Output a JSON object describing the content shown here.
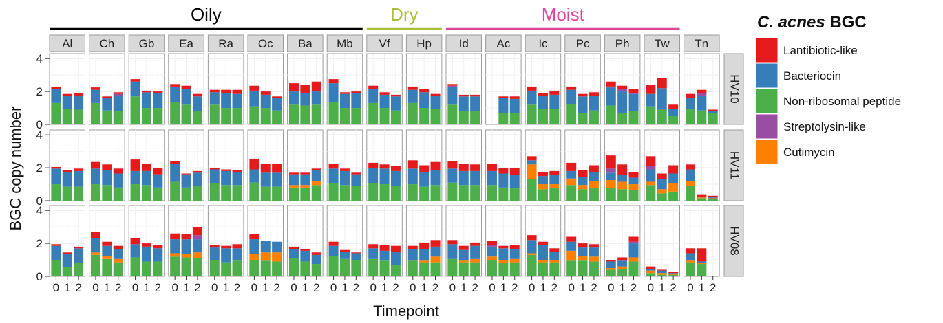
{
  "chart_data": {
    "type": "bar",
    "stacked": true,
    "faceted": true,
    "ylabel": "BGC copy number",
    "xlabel": "Timepoint",
    "ylim": [
      0,
      4.3
    ],
    "yticks": [
      0,
      2,
      4
    ],
    "timepoints": [
      "0",
      "1",
      "2"
    ],
    "grid": true,
    "groups": [
      {
        "name": "Oily",
        "sites": [
          "Al",
          "Ch",
          "Gb",
          "Ea",
          "Ra",
          "Oc",
          "Ba",
          "Mb"
        ],
        "color": "#000000"
      },
      {
        "name": "Dry",
        "sites": [
          "Vf",
          "Hp"
        ],
        "color": "#a9be38"
      },
      {
        "name": "Moist",
        "sites": [
          "Id",
          "Ac",
          "Ic",
          "Pc",
          "Ph",
          "Tw"
        ],
        "color": "#e0449a"
      }
    ],
    "sites": [
      "Al",
      "Ch",
      "Gb",
      "Ea",
      "Ra",
      "Oc",
      "Ba",
      "Mb",
      "Vf",
      "Hp",
      "Id",
      "Ac",
      "Ic",
      "Pc",
      "Ph",
      "Tw",
      "Tn"
    ],
    "subjects": [
      "HV10",
      "HV11",
      "HV08"
    ],
    "legend": {
      "title_italic": "C. acnes",
      "title_rest": " BGC",
      "placement": "right",
      "entries": [
        {
          "label": "Lantibiotic-like",
          "color": "#e41a1c"
        },
        {
          "label": "Bacteriocin",
          "color": "#377eb8"
        },
        {
          "label": "Non-ribosomal peptide",
          "color": "#4daf4a"
        },
        {
          "label": "Streptolysin-like",
          "color": "#984ea3"
        },
        {
          "label": "Cutimycin",
          "color": "#ff7f00"
        }
      ]
    },
    "series_order": [
      "Non-ribosomal peptide",
      "Cutimycin",
      "Bacteriocin",
      "Streptolysin-like",
      "Lantibiotic-like"
    ],
    "panels": {
      "HV10": {
        "Al": [
          [
            1.3,
            0,
            0.85,
            0,
            0.15
          ],
          [
            0.95,
            0,
            0.8,
            0,
            0.1
          ],
          [
            0.9,
            0,
            0.85,
            0,
            0.15
          ]
        ],
        "Ch": [
          [
            1.3,
            0,
            0.8,
            0,
            0.15
          ],
          [
            0.85,
            0,
            0.75,
            0,
            0.1
          ],
          [
            0.8,
            0,
            0.95,
            0.1,
            0.1
          ]
        ],
        "Gb": [
          [
            1.7,
            0,
            0.9,
            0,
            0.15
          ],
          [
            1.0,
            0,
            0.95,
            0,
            0.1
          ],
          [
            1.0,
            0,
            0.9,
            0,
            0.1
          ]
        ],
        "Ea": [
          [
            1.35,
            0,
            0.95,
            0,
            0.15
          ],
          [
            1.2,
            0,
            0.95,
            0,
            0.2
          ],
          [
            0.8,
            0,
            0.9,
            0,
            0.15
          ]
        ],
        "Ra": [
          [
            1.2,
            0,
            0.75,
            0,
            0.15
          ],
          [
            1.0,
            0,
            0.9,
            0,
            0.2
          ],
          [
            1.0,
            0,
            0.85,
            0,
            0.25
          ]
        ],
        "Oc": [
          [
            1.1,
            0,
            0.95,
            0,
            0.3
          ],
          [
            1.0,
            0,
            0.8,
            0,
            0.2
          ],
          [
            0.85,
            0,
            0.75,
            0,
            0.1
          ]
        ],
        "Ba": [
          [
            1.2,
            0,
            0.8,
            0,
            0.5
          ],
          [
            1.15,
            0,
            0.75,
            0,
            0.5
          ],
          [
            1.2,
            0,
            0.8,
            0,
            0.6
          ]
        ],
        "Mb": [
          [
            1.35,
            0,
            1.15,
            0,
            0.25
          ],
          [
            1.0,
            0,
            0.85,
            0,
            0.1
          ],
          [
            1.0,
            0,
            0.9,
            0,
            0.1
          ]
        ],
        "Vf": [
          [
            1.3,
            0,
            0.85,
            0,
            0.2
          ],
          [
            1.0,
            0,
            0.8,
            0,
            0.15
          ],
          [
            0.85,
            0,
            0.85,
            0,
            0.1
          ]
        ],
        "Hp": [
          [
            1.3,
            0,
            0.8,
            0,
            0.2
          ],
          [
            1.0,
            0,
            0.95,
            0,
            0.2
          ],
          [
            0.95,
            0,
            0.8,
            0,
            0.1
          ]
        ],
        "Id": [
          [
            1.2,
            0,
            1.1,
            0.05,
            0.1
          ],
          [
            0.8,
            0,
            0.9,
            0,
            0.1
          ],
          [
            0.8,
            0,
            0.9,
            0,
            0.1
          ]
        ],
        "Ac": [
          [
            0,
            0,
            0,
            0,
            0
          ],
          [
            0.7,
            0,
            0.9,
            0,
            0.1
          ],
          [
            0.7,
            0,
            0.85,
            0,
            0.15
          ]
        ],
        "Ic": [
          [
            1.2,
            0,
            0.85,
            0,
            0.25
          ],
          [
            0.95,
            0,
            0.8,
            0,
            0.15
          ],
          [
            0.95,
            0,
            0.85,
            0,
            0.25
          ]
        ],
        "Pc": [
          [
            1.25,
            0,
            0.85,
            0,
            0.2
          ],
          [
            0.7,
            0,
            1.0,
            0,
            0.15
          ],
          [
            0.85,
            0,
            0.9,
            0,
            0.2
          ]
        ],
        "Ph": [
          [
            1.15,
            0,
            1.1,
            0.05,
            0.3
          ],
          [
            0.7,
            0,
            1.3,
            0.15,
            0.2
          ],
          [
            0.8,
            0,
            1.05,
            0.05,
            0.25
          ]
        ],
        "Tw": [
          [
            1.1,
            0,
            0.75,
            0,
            0.55
          ],
          [
            0.9,
            0,
            1.3,
            0,
            0.6
          ],
          [
            0.5,
            0,
            0.45,
            0,
            0.25
          ]
        ],
        "Tn": [
          [
            0.95,
            0,
            0.65,
            0,
            0.25
          ],
          [
            0.85,
            0,
            0.9,
            0.15,
            0.2
          ],
          [
            0.7,
            0,
            0.1,
            0,
            0.1
          ]
        ]
      },
      "HV11": {
        "Al": [
          [
            1.0,
            0,
            0.95,
            0,
            0.1
          ],
          [
            0.85,
            0,
            0.9,
            0,
            0.1
          ],
          [
            0.85,
            0,
            0.95,
            0,
            0.15
          ]
        ],
        "Ch": [
          [
            1.0,
            0,
            0.95,
            0,
            0.4
          ],
          [
            0.95,
            0,
            0.9,
            0,
            0.35
          ],
          [
            0.8,
            0,
            0.85,
            0,
            0.3
          ]
        ],
        "Gb": [
          [
            1.0,
            0,
            0.8,
            0,
            0.7
          ],
          [
            0.95,
            0,
            0.85,
            0,
            0.45
          ],
          [
            0.8,
            0,
            0.8,
            0,
            0.4
          ]
        ],
        "Ea": [
          [
            1.15,
            0,
            1.1,
            0,
            0.15
          ],
          [
            0.8,
            0,
            0.8,
            0,
            0.05
          ],
          [
            0.9,
            0,
            0.8,
            0,
            0.1
          ]
        ],
        "Ra": [
          [
            1.05,
            0,
            0.85,
            0,
            0.1
          ],
          [
            0.95,
            0,
            0.85,
            0,
            0.1
          ],
          [
            0.95,
            0,
            0.8,
            0,
            0.1
          ]
        ],
        "Oc": [
          [
            1.1,
            0,
            0.8,
            0,
            0.65
          ],
          [
            0.85,
            0,
            0.85,
            0,
            0.55
          ],
          [
            0.85,
            0,
            0.85,
            0,
            0.55
          ]
        ],
        "Ba": [
          [
            0.8,
            0.15,
            0.65,
            0,
            0.1
          ],
          [
            0.8,
            0.15,
            0.65,
            0,
            0.1
          ],
          [
            0.95,
            0.25,
            0.65,
            0,
            0.1
          ]
        ],
        "Mb": [
          [
            1.05,
            0,
            0.9,
            0,
            0.3
          ],
          [
            0.95,
            0,
            0.85,
            0,
            0.15
          ],
          [
            0.9,
            0,
            0.7,
            0,
            0.1
          ]
        ],
        "Vf": [
          [
            1.05,
            0,
            0.95,
            0,
            0.3
          ],
          [
            1.0,
            0,
            0.95,
            0,
            0.25
          ],
          [
            0.9,
            0,
            0.9,
            0,
            0.3
          ]
        ],
        "Hp": [
          [
            1.0,
            0,
            0.95,
            0,
            0.5
          ],
          [
            0.85,
            0,
            0.9,
            0,
            0.4
          ],
          [
            0.95,
            0,
            0.9,
            0,
            0.5
          ]
        ],
        "Id": [
          [
            1.1,
            0,
            0.85,
            0,
            0.45
          ],
          [
            0.95,
            0,
            0.85,
            0,
            0.45
          ],
          [
            0.95,
            0,
            0.85,
            0,
            0.4
          ]
        ],
        "Ac": [
          [
            0.95,
            0,
            0.85,
            0,
            0.45
          ],
          [
            0.8,
            0,
            0.85,
            0,
            0.35
          ],
          [
            0.75,
            0,
            0.8,
            0,
            0.45
          ]
        ],
        "Ic": [
          [
            1.3,
            0.9,
            0.25,
            0,
            0.25
          ],
          [
            0.7,
            0.3,
            0.5,
            0,
            0.25
          ],
          [
            0.75,
            0.25,
            0.55,
            0,
            0.25
          ]
        ],
        "Pc": [
          [
            0.95,
            0.4,
            0.45,
            0,
            0.5
          ],
          [
            0.7,
            0.25,
            0.5,
            0,
            0.4
          ],
          [
            0.75,
            0.45,
            0.55,
            0,
            0.4
          ]
        ],
        "Ph": [
          [
            0.75,
            0.5,
            0.45,
            0.25,
            0.8
          ],
          [
            0.7,
            0.45,
            0.4,
            0,
            0.65
          ],
          [
            0.65,
            0.35,
            0.4,
            0,
            0.35
          ]
        ],
        "Tw": [
          [
            0.95,
            0.2,
            0.75,
            0.2,
            0.6
          ],
          [
            0.45,
            0.25,
            0.6,
            0,
            0.35
          ],
          [
            0.55,
            0.5,
            0.6,
            0,
            0.5
          ]
        ],
        "Tn": [
          [
            0.9,
            0.3,
            0.7,
            0,
            0.3
          ],
          [
            0.15,
            0.05,
            0.05,
            0,
            0.1
          ],
          [
            0.1,
            0.05,
            0.05,
            0,
            0.1
          ]
        ]
      },
      "HV08": {
        "Al": [
          [
            1.0,
            0,
            0.85,
            0,
            0.1
          ],
          [
            0.55,
            0,
            0.8,
            0,
            0.1
          ],
          [
            0.8,
            0,
            0.9,
            0,
            0.1
          ]
        ],
        "Ch": [
          [
            1.3,
            0.15,
            0.85,
            0,
            0.4
          ],
          [
            1.05,
            0.2,
            0.6,
            0,
            0.25
          ],
          [
            0.85,
            0.2,
            0.6,
            0,
            0.2
          ]
        ],
        "Gb": [
          [
            1.15,
            0,
            0.8,
            0,
            0.35
          ],
          [
            0.9,
            0,
            0.9,
            0,
            0.2
          ],
          [
            0.9,
            0,
            0.8,
            0,
            0.2
          ]
        ],
        "Ea": [
          [
            1.2,
            0.2,
            0.85,
            0,
            0.35
          ],
          [
            1.15,
            0.2,
            0.9,
            0,
            0.3
          ],
          [
            1.1,
            0.35,
            0.8,
            0.25,
            0.5
          ]
        ],
        "Ra": [
          [
            1.0,
            0,
            0.75,
            0,
            0.15
          ],
          [
            0.85,
            0,
            0.85,
            0,
            0.15
          ],
          [
            0.95,
            0,
            0.75,
            0,
            0.25
          ]
        ],
        "Oc": [
          [
            1.0,
            0.35,
            0.9,
            0,
            0.3
          ],
          [
            0.95,
            0.5,
            0.7,
            0,
            0.0
          ],
          [
            0.9,
            0.55,
            0.65,
            0,
            0.0
          ]
        ],
        "Ba": [
          [
            1.1,
            0,
            0.55,
            0,
            0.15
          ],
          [
            0.9,
            0,
            0.65,
            0,
            0.1
          ],
          [
            0.75,
            0,
            0.55,
            0,
            0.15
          ]
        ],
        "Mb": [
          [
            1.25,
            0,
            0.6,
            0,
            0.25
          ],
          [
            1.05,
            0,
            0.45,
            0,
            0.1
          ],
          [
            1.0,
            0,
            0.4,
            0,
            0.05
          ]
        ],
        "Vf": [
          [
            1.05,
            0,
            0.65,
            0,
            0.25
          ],
          [
            0.95,
            0,
            0.6,
            0,
            0.35
          ],
          [
            0.7,
            0,
            0.8,
            0,
            0.35
          ]
        ],
        "Hp": [
          [
            0.95,
            0,
            0.7,
            0,
            0.2
          ],
          [
            0.85,
            0.1,
            0.7,
            0,
            0.4
          ],
          [
            0.85,
            0.35,
            0.6,
            0,
            0.4
          ]
        ],
        "Id": [
          [
            1.05,
            0,
            0.9,
            0,
            0.25
          ],
          [
            0.85,
            0.1,
            0.65,
            0,
            0.25
          ],
          [
            0.85,
            0.2,
            0.8,
            0,
            0.2
          ]
        ],
        "Ac": [
          [
            1.0,
            0.2,
            0.6,
            0.1,
            0.25
          ],
          [
            0.8,
            0.2,
            0.7,
            0,
            0.15
          ],
          [
            0.85,
            0.2,
            0.6,
            0,
            0.25
          ]
        ],
        "Ic": [
          [
            1.3,
            0.1,
            0.8,
            0,
            0.3
          ],
          [
            0.85,
            0.15,
            0.9,
            0,
            0.2
          ],
          [
            0.85,
            0.15,
            0.5,
            0,
            0.2
          ]
        ],
        "Pc": [
          [
            0.95,
            0.6,
            0.55,
            0,
            0.3
          ],
          [
            0.95,
            0.3,
            0.5,
            0,
            0.25
          ],
          [
            0.9,
            0.3,
            0.55,
            0,
            0.2
          ]
        ],
        "Ph": [
          [
            0.4,
            0.1,
            0.4,
            0,
            0.1
          ],
          [
            0.45,
            0.15,
            0.35,
            0,
            0.2
          ],
          [
            0.9,
            0.25,
            0.85,
            0.1,
            0.3
          ]
        ],
        "Tw": [
          [
            0.2,
            0.15,
            0.1,
            0,
            0.15
          ],
          [
            0.1,
            0.1,
            0.15,
            0,
            0.05
          ],
          [
            0.1,
            0.05,
            0.05,
            0,
            0.05
          ]
        ],
        "Tn": [
          [
            0.85,
            0.1,
            0.45,
            0,
            0.3
          ],
          [
            0.75,
            0.05,
            0.1,
            0,
            0.8
          ],
          [
            0,
            0,
            0,
            0,
            0
          ]
        ]
      }
    }
  }
}
